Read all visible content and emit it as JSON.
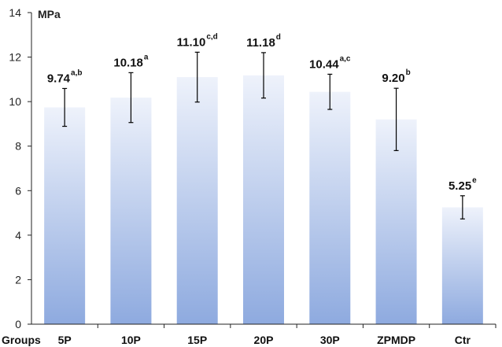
{
  "chart_data": {
    "type": "bar",
    "ylabel": "MPa",
    "xlabel": "Groups",
    "ylim": [
      0,
      14
    ],
    "yticks": [
      0,
      2,
      4,
      6,
      8,
      10,
      12,
      14
    ],
    "categories": [
      "5P",
      "10P",
      "15P",
      "20P",
      "30P",
      "ZPMDP",
      "Ctr"
    ],
    "values": [
      9.74,
      10.18,
      11.1,
      11.18,
      10.44,
      9.2,
      5.25
    ],
    "value_labels": [
      "9.74",
      "10.18",
      "11.10",
      "11.18",
      "10.44",
      "9.20",
      "5.25"
    ],
    "superscripts": [
      "a,b",
      "a",
      "c,d",
      "d",
      "a,c",
      "b",
      "e"
    ],
    "errors": [
      0.85,
      1.12,
      1.12,
      1.02,
      0.79,
      1.4,
      0.52
    ],
    "grid": false,
    "colors": {
      "bar_top": "#eef2fb",
      "bar_bottom": "#8eaadf",
      "axis": "#222222"
    }
  }
}
